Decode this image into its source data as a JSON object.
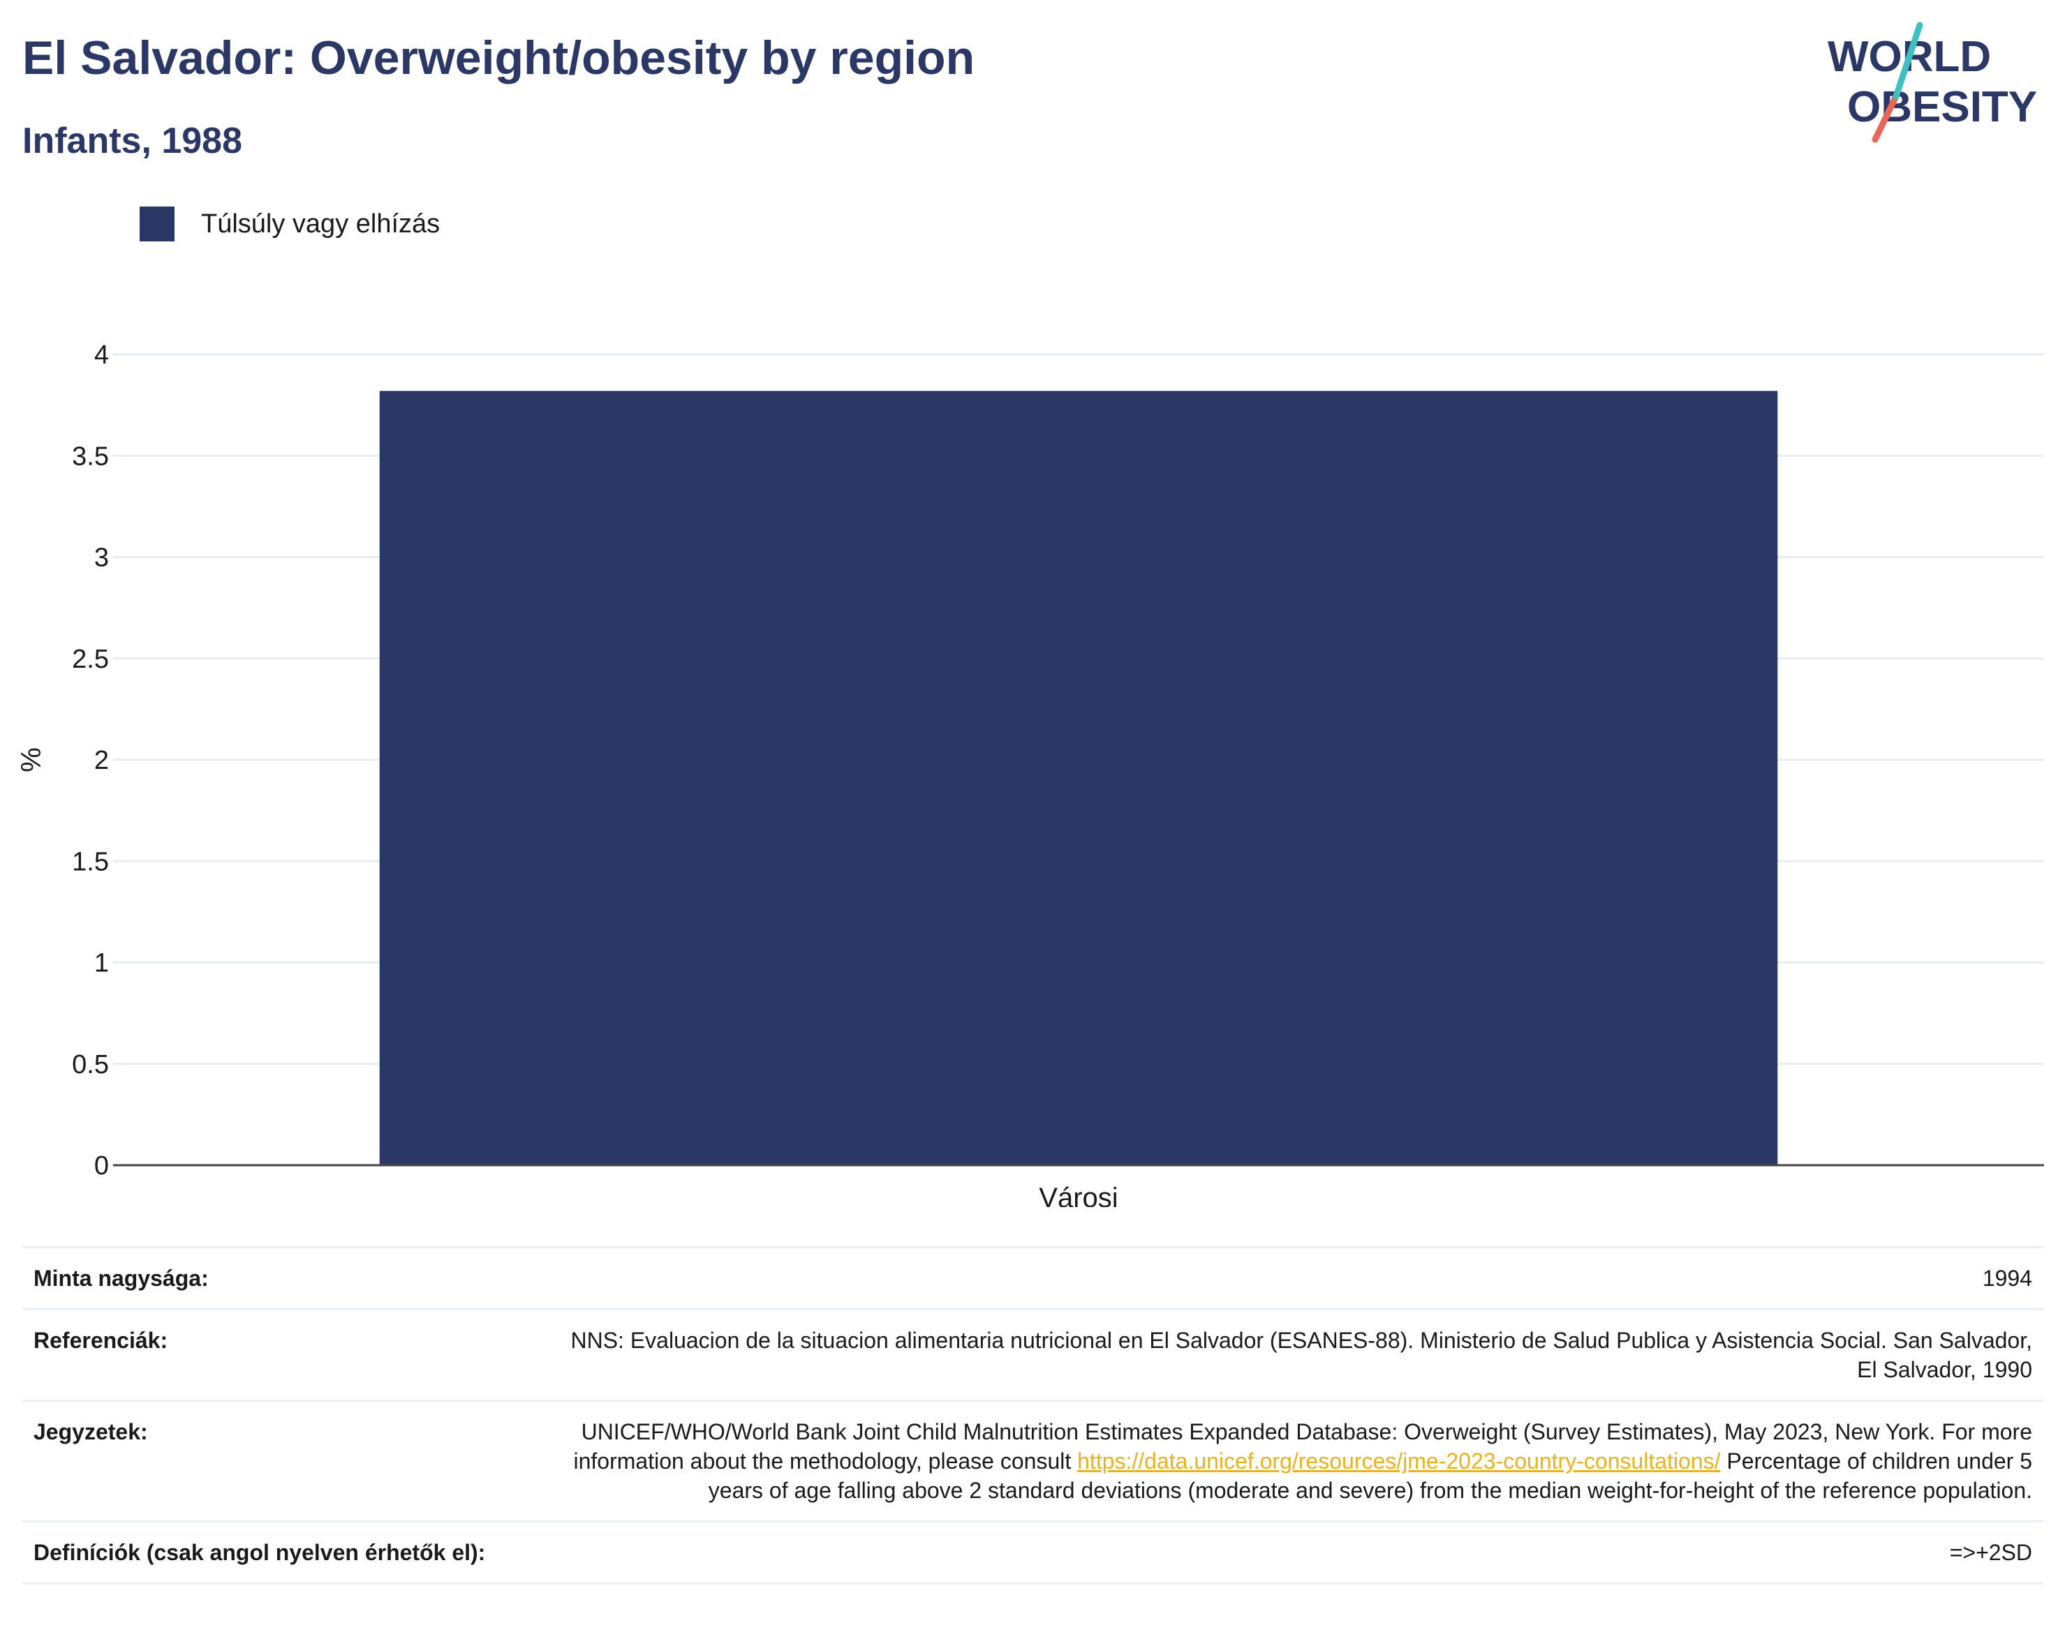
{
  "header": {
    "title": "El Salvador: Overweight/obesity by region",
    "subtitle": "Infants, 1988",
    "logo_text": [
      "WORLD",
      "OBESITY"
    ]
  },
  "legend": {
    "label": "Túlsúly vagy elhízás",
    "color": "#2b3764"
  },
  "chart_data": {
    "type": "bar",
    "categories": [
      "Városi"
    ],
    "series": [
      {
        "name": "Túlsúly vagy elhízás",
        "values": [
          3.82
        ],
        "color": "#2b3764"
      }
    ],
    "ylabel": "%",
    "xlabel": "",
    "ylim": [
      0,
      4
    ],
    "yticks": [
      0,
      0.5,
      1,
      1.5,
      2,
      2.5,
      3,
      3.5,
      4
    ],
    "ytick_labels": [
      "0",
      "0.5",
      "1",
      "1.5",
      "2",
      "2.5",
      "3",
      "3.5",
      "4"
    ],
    "grid": true,
    "legend_position": "top-left"
  },
  "info": {
    "sample_size_label": "Minta nagysága:",
    "sample_size_value": "1994",
    "references_label": "Referenciák:",
    "references_value": "NNS: Evaluacion de la situacion alimentaria nutricional en El Salvador (ESANES-88). Ministerio de Salud Publica y Asistencia Social. San Salvador, El Salvador, 1990",
    "notes_label": "Jegyzetek:",
    "notes_text_1": "UNICEF/WHO/World Bank Joint Child Malnutrition Estimates Expanded Database: Overweight (Survey Estimates), May 2023, New York. For more information about the methodology, please consult",
    "notes_link": "https://data.unicef.org/resources/jme-2023-country-consultations/",
    "notes_text_2": "Percentage of children under 5 years of age falling above 2 standard deviations (moderate and severe) from the median weight-for-height of the reference population.",
    "definitions_label": "Definíciók (csak angol nyelven érhetők el):",
    "definitions_value": "=>+2SD"
  }
}
